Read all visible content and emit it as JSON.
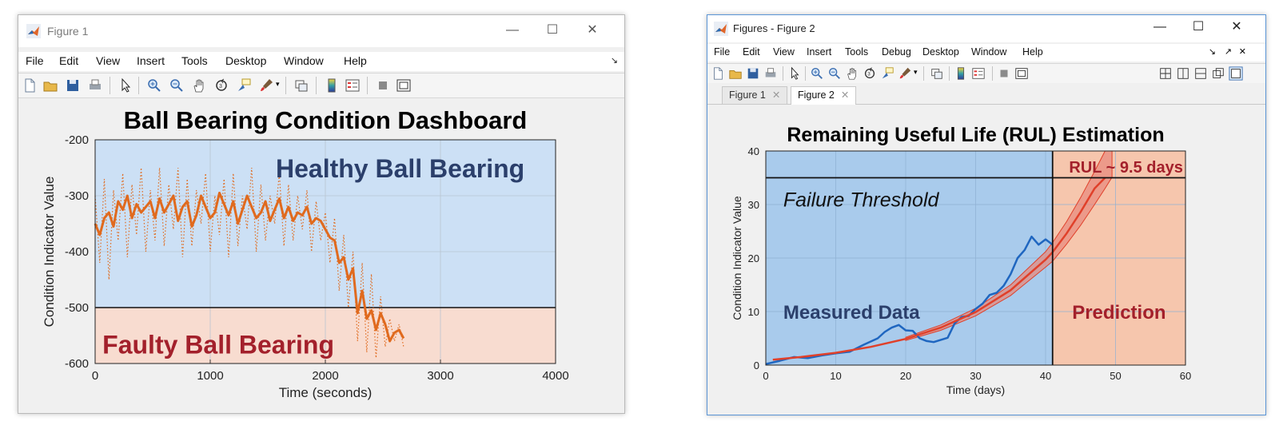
{
  "window1": {
    "title": "Figure 1",
    "menu": [
      "File",
      "Edit",
      "View",
      "Insert",
      "Tools",
      "Desktop",
      "Window",
      "Help"
    ],
    "toolbar_icons": [
      "new-file-icon",
      "open-folder-icon",
      "save-icon",
      "print-icon",
      "pointer-icon",
      "zoom-in-icon",
      "zoom-out-icon",
      "pan-hand-icon",
      "rotate-3d-icon",
      "data-cursor-icon",
      "brush-icon",
      "link-plot-icon",
      "colorbar-icon",
      "legend-icon",
      "hide-tools-icon",
      "show-tools-icon"
    ]
  },
  "window2": {
    "title": "Figures - Figure 2",
    "menu": [
      "File",
      "Edit",
      "View",
      "Insert",
      "Tools",
      "Debug",
      "Desktop",
      "Window",
      "Help"
    ],
    "tabs": [
      "Figure 1",
      "Figure 2"
    ],
    "active_tab": "Figure 2",
    "toolbar_icons": [
      "new-file-icon",
      "open-folder-icon",
      "save-icon",
      "print-icon",
      "pointer-icon",
      "zoom-in-icon",
      "zoom-out-icon",
      "pan-hand-icon",
      "rotate-3d-icon",
      "data-cursor-icon",
      "brush-icon",
      "link-plot-icon",
      "colorbar-icon",
      "legend-icon",
      "hide-tools-icon",
      "show-tools-icon"
    ],
    "layout_icons": [
      "tile-grid-icon",
      "split-vertical-icon",
      "split-horizontal-icon",
      "float-icon",
      "maximize-icon"
    ]
  },
  "colors": {
    "healthy_bg": "#cce0f5",
    "faulty_bg": "#f8dcd0",
    "measured_bg": "#a9cbec",
    "prediction_bg": "#f6c6ad",
    "orange": "#e06a1e",
    "dark_blue_text": "#2b3f6b",
    "red_text": "#a3202b",
    "blue_line": "#1f66c0",
    "red_line": "#e0402a"
  },
  "chart_data": [
    {
      "type": "line",
      "title": "Ball Bearing Condition Dashboard",
      "xlabel": "Time (seconds)",
      "ylabel": "Condition Indicator Value",
      "xlim": [
        0,
        4000
      ],
      "ylim": [
        -600,
        -200
      ],
      "xticks": [
        "0",
        "1000",
        "2000",
        "3000",
        "4000"
      ],
      "yticks": [
        "-200",
        "-300",
        "-400",
        "-500",
        "-600"
      ],
      "grid": true,
      "threshold": -500,
      "annotations": [
        "Healthy Ball Bearing",
        "Faulty Ball Bearing"
      ],
      "series": [
        {
          "style": "solid",
          "x": [
            0,
            40,
            80,
            120,
            160,
            200,
            240,
            280,
            320,
            360,
            400,
            440,
            480,
            520,
            560,
            600,
            640,
            680,
            720,
            760,
            800,
            840,
            880,
            920,
            960,
            1000,
            1040,
            1080,
            1120,
            1160,
            1200,
            1240,
            1280,
            1320,
            1360,
            1400,
            1440,
            1480,
            1520,
            1560,
            1600,
            1640,
            1680,
            1720,
            1760,
            1800,
            1840,
            1880,
            1920,
            1960,
            2000,
            2040,
            2080,
            2120,
            2160,
            2200,
            2240,
            2280,
            2320,
            2360,
            2400,
            2440,
            2480,
            2520,
            2560,
            2600,
            2640,
            2680
          ],
          "y": [
            -350,
            -370,
            -340,
            -330,
            -355,
            -310,
            -325,
            -300,
            -340,
            -315,
            -330,
            -320,
            -310,
            -340,
            -305,
            -330,
            -315,
            -300,
            -345,
            -320,
            -310,
            -355,
            -335,
            -300,
            -320,
            -340,
            -330,
            -295,
            -315,
            -335,
            -310,
            -350,
            -325,
            -300,
            -320,
            -340,
            -330,
            -310,
            -345,
            -325,
            -305,
            -340,
            -320,
            -345,
            -330,
            -335,
            -320,
            -350,
            -340,
            -345,
            -360,
            -375,
            -380,
            -420,
            -410,
            -450,
            -430,
            -510,
            -470,
            -520,
            -505,
            -540,
            -510,
            -530,
            -560,
            -545,
            -540,
            -555
          ]
        },
        {
          "style": "dotted",
          "x": [
            0,
            40,
            80,
            120,
            160,
            200,
            240,
            280,
            320,
            360,
            400,
            440,
            480,
            520,
            560,
            600,
            640,
            680,
            720,
            760,
            800,
            840,
            880,
            920,
            960,
            1000,
            1040,
            1080,
            1120,
            1160,
            1200,
            1240,
            1280,
            1320,
            1360,
            1400,
            1440,
            1480,
            1520,
            1560,
            1600,
            1640,
            1680,
            1720,
            1760,
            1800,
            1840,
            1880,
            1920,
            1960,
            2000,
            2040,
            2080,
            2120,
            2160,
            2200,
            2240,
            2280,
            2320,
            2360,
            2400,
            2440,
            2480,
            2520,
            2560,
            2600,
            2640,
            2680
          ],
          "y": [
            -300,
            -420,
            -270,
            -450,
            -290,
            -380,
            -260,
            -410,
            -280,
            -370,
            -250,
            -400,
            -290,
            -380,
            -250,
            -390,
            -280,
            -360,
            -250,
            -410,
            -270,
            -390,
            -290,
            -350,
            -260,
            -400,
            -300,
            -370,
            -270,
            -410,
            -260,
            -390,
            -300,
            -360,
            -250,
            -400,
            -280,
            -380,
            -300,
            -350,
            -260,
            -390,
            -280,
            -380,
            -300,
            -360,
            -290,
            -400,
            -310,
            -380,
            -330,
            -420,
            -340,
            -470,
            -370,
            -500,
            -400,
            -560,
            -420,
            -580,
            -440,
            -590,
            -480,
            -570,
            -520,
            -560,
            -530,
            -570
          ]
        }
      ]
    },
    {
      "type": "line",
      "title": "Remaining Useful Life (RUL) Estimation",
      "xlabel": "Time (days)",
      "ylabel": "Condition Indicator Value",
      "xlim": [
        0,
        60
      ],
      "ylim": [
        0,
        40
      ],
      "xticks": [
        "0",
        "10",
        "20",
        "30",
        "40",
        "50",
        "60"
      ],
      "yticks": [
        "0",
        "10",
        "20",
        "30",
        "40"
      ],
      "grid": true,
      "threshold": 35,
      "threshold_label": "Failure Threshold",
      "prediction_start": 41,
      "rul_label": "RUL ~ 9.5 days",
      "annotations": [
        "Measured Data",
        "Prediction"
      ],
      "measured": {
        "x": [
          0,
          2,
          4,
          6,
          8,
          10,
          12,
          14,
          16,
          17,
          18,
          19,
          20,
          21,
          22,
          23,
          24,
          26,
          27,
          28,
          29,
          30,
          31,
          32,
          33,
          34,
          35,
          36,
          37,
          38,
          39,
          40,
          41
        ],
        "y": [
          0.2,
          0.8,
          1.5,
          1.3,
          1.8,
          2.2,
          2.5,
          3.8,
          5.0,
          6.2,
          7.0,
          7.5,
          6.5,
          6.4,
          5.0,
          4.5,
          4.3,
          5.1,
          7.8,
          9.0,
          9.2,
          10.5,
          11.5,
          13.1,
          13.5,
          14.8,
          17.0,
          20.0,
          21.5,
          24.0,
          22.5,
          23.5,
          22.5
        ]
      },
      "fit": {
        "x": [
          1,
          5,
          10,
          15,
          20,
          25,
          30,
          35,
          40,
          41,
          43,
          45,
          47,
          48.5
        ],
        "y": [
          1.0,
          1.5,
          2.3,
          3.4,
          4.9,
          7.0,
          9.9,
          14.0,
          19.7,
          21.1,
          24.6,
          28.6,
          33.0,
          35.0
        ]
      },
      "band": {
        "x": [
          20,
          25,
          30,
          35,
          40,
          41,
          43,
          45,
          47,
          48.5,
          49.5
        ],
        "upper": [
          5.2,
          7.5,
          10.6,
          15.0,
          21.2,
          22.9,
          26.8,
          31.3,
          36.2,
          40.0,
          40.0
        ],
        "lower": [
          4.6,
          6.5,
          9.2,
          13.0,
          18.3,
          19.4,
          22.6,
          26.1,
          30.0,
          33.0,
          35.1
        ]
      }
    }
  ]
}
